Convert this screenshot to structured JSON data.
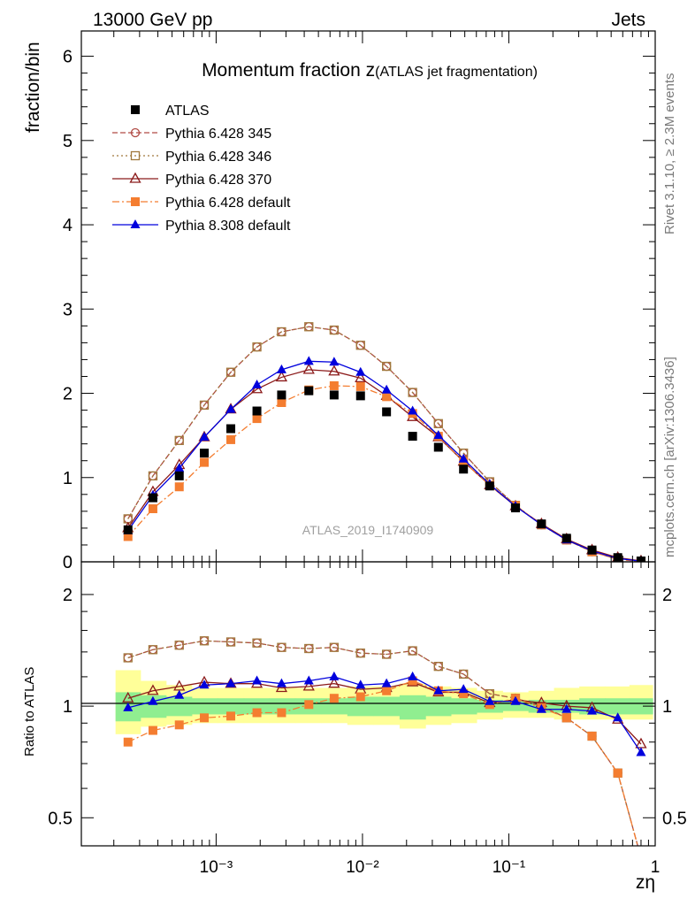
{
  "header": {
    "energy": "13000 GeV pp",
    "category": "Jets"
  },
  "side_labels": {
    "rivet": "Rivet 3.1.10, ≥ 2.3M events",
    "source": "mcplots.cern.ch [arXiv:1306.3436]"
  },
  "chart_data": [
    {
      "type": "scatter",
      "title_main": "Momentum fraction z",
      "title_sub": "(ATLAS jet fragmentation)",
      "ylabel": "fraction/bin",
      "xlabel": "zη",
      "analysis_label": "ATLAS_2019_I1740909",
      "x_scale": "log",
      "xlim": [
        0.00012,
        1.0
      ],
      "ylim": [
        0,
        6.3
      ],
      "yticks": [
        "0",
        "1",
        "2",
        "3",
        "4",
        "5",
        "6"
      ],
      "xticks": [
        "10⁻³",
        "10⁻²",
        "10⁻¹",
        "1"
      ],
      "x": [
        0.00025,
        0.00037,
        0.00056,
        0.00083,
        0.00126,
        0.0019,
        0.0028,
        0.0043,
        0.0064,
        0.0097,
        0.0146,
        0.022,
        0.033,
        0.049,
        0.074,
        0.111,
        0.167,
        0.248,
        0.37,
        0.555,
        0.8
      ],
      "series": [
        {
          "name": "ATLAS",
          "color": "#000000",
          "marker": "square-filled",
          "line": "none",
          "values": [
            0.38,
            0.76,
            1.02,
            1.29,
            1.58,
            1.79,
            1.98,
            2.03,
            1.98,
            1.97,
            1.78,
            1.49,
            1.36,
            1.1,
            0.9,
            0.64,
            0.45,
            0.28,
            0.14,
            0.05,
            0.01
          ]
        },
        {
          "name": "Pythia 6.428 345",
          "color": "#b04a44",
          "marker": "circle-open",
          "line": "dashed",
          "values": [
            0.51,
            1.02,
            1.44,
            1.86,
            2.25,
            2.55,
            2.73,
            2.79,
            2.75,
            2.57,
            2.32,
            2.01,
            1.64,
            1.29,
            0.95,
            0.67,
            0.44,
            0.26,
            0.12,
            0.03,
            0.004
          ]
        },
        {
          "name": "Pythia 6.428 346",
          "color": "#a0783c",
          "marker": "square-open",
          "line": "dotted",
          "values": [
            0.51,
            1.02,
            1.44,
            1.86,
            2.25,
            2.55,
            2.73,
            2.79,
            2.75,
            2.57,
            2.32,
            2.01,
            1.64,
            1.29,
            0.95,
            0.67,
            0.44,
            0.26,
            0.12,
            0.03,
            0.004
          ]
        },
        {
          "name": "Pythia 6.428 370",
          "color": "#8b1a1a",
          "marker": "triangle-open",
          "line": "solid",
          "values": [
            0.4,
            0.83,
            1.15,
            1.48,
            1.81,
            2.05,
            2.19,
            2.28,
            2.26,
            2.18,
            1.97,
            1.72,
            1.48,
            1.19,
            0.91,
            0.66,
            0.45,
            0.27,
            0.14,
            0.05,
            0.01
          ]
        },
        {
          "name": "Pythia 6.428 default",
          "color": "#f47d30",
          "marker": "square-filled",
          "line": "dashdot",
          "values": [
            0.3,
            0.63,
            0.89,
            1.18,
            1.45,
            1.7,
            1.89,
            2.04,
            2.09,
            2.08,
            1.96,
            1.76,
            1.49,
            1.19,
            0.91,
            0.67,
            0.44,
            0.26,
            0.12,
            0.03,
            0.004
          ]
        },
        {
          "name": "Pythia 8.308 default",
          "color": "#0000dd",
          "marker": "triangle-filled",
          "line": "solid",
          "values": [
            0.37,
            0.79,
            1.11,
            1.48,
            1.81,
            2.1,
            2.28,
            2.38,
            2.37,
            2.25,
            2.04,
            1.79,
            1.5,
            1.22,
            0.92,
            0.66,
            0.44,
            0.26,
            0.13,
            0.04,
            0.008
          ]
        }
      ]
    },
    {
      "type": "scatter",
      "ylabel": "Ratio to ATLAS",
      "y_scale": "log",
      "ylim": [
        0.42,
        2.45
      ],
      "yticks": [
        "0.5",
        "1",
        "2"
      ],
      "reference_line": 1.0,
      "uncertainty_bands": {
        "inner_color": "#90ee90",
        "outer_color": "#ffff99",
        "inner": [
          [
            0.91,
            1.09
          ],
          [
            0.93,
            1.07
          ],
          [
            0.94,
            1.06
          ],
          [
            0.95,
            1.05
          ],
          [
            0.95,
            1.05
          ],
          [
            0.95,
            1.05
          ],
          [
            0.95,
            1.05
          ],
          [
            0.95,
            1.05
          ],
          [
            0.95,
            1.05
          ],
          [
            0.94,
            1.06
          ],
          [
            0.94,
            1.06
          ],
          [
            0.92,
            1.07
          ],
          [
            0.94,
            1.06
          ],
          [
            0.95,
            1.05
          ],
          [
            0.96,
            1.04
          ],
          [
            0.97,
            1.03
          ],
          [
            0.96,
            1.04
          ],
          [
            0.96,
            1.04
          ],
          [
            0.95,
            1.05
          ],
          [
            0.95,
            1.05
          ],
          [
            0.95,
            1.05
          ]
        ],
        "outer": [
          [
            0.84,
            1.25
          ],
          [
            0.88,
            1.17
          ],
          [
            0.89,
            1.14
          ],
          [
            0.9,
            1.12
          ],
          [
            0.9,
            1.12
          ],
          [
            0.9,
            1.12
          ],
          [
            0.9,
            1.12
          ],
          [
            0.9,
            1.12
          ],
          [
            0.9,
            1.12
          ],
          [
            0.89,
            1.13
          ],
          [
            0.89,
            1.13
          ],
          [
            0.87,
            1.15
          ],
          [
            0.89,
            1.13
          ],
          [
            0.9,
            1.12
          ],
          [
            0.92,
            1.1
          ],
          [
            0.93,
            1.09
          ],
          [
            0.93,
            1.1
          ],
          [
            0.92,
            1.12
          ],
          [
            0.92,
            1.13
          ],
          [
            0.92,
            1.13
          ],
          [
            0.92,
            1.14
          ]
        ]
      },
      "series": [
        {
          "name": "Pythia 6.428 345",
          "values": [
            1.35,
            1.42,
            1.46,
            1.5,
            1.49,
            1.48,
            1.44,
            1.43,
            1.44,
            1.39,
            1.38,
            1.41,
            1.28,
            1.22,
            1.08,
            1.05,
            1.0,
            0.93,
            0.83,
            0.66,
            0.39
          ]
        },
        {
          "name": "Pythia 6.428 346",
          "values": [
            1.35,
            1.42,
            1.46,
            1.5,
            1.49,
            1.48,
            1.44,
            1.43,
            1.44,
            1.39,
            1.38,
            1.41,
            1.28,
            1.22,
            1.08,
            1.05,
            1.0,
            0.93,
            0.83,
            0.66,
            0.39
          ]
        },
        {
          "name": "Pythia 6.428 370",
          "values": [
            1.05,
            1.1,
            1.13,
            1.16,
            1.15,
            1.15,
            1.12,
            1.13,
            1.15,
            1.11,
            1.12,
            1.16,
            1.09,
            1.09,
            1.02,
            1.04,
            1.02,
            1.0,
            0.99,
            0.92,
            0.79
          ]
        },
        {
          "name": "Pythia 6.428 default",
          "values": [
            0.8,
            0.86,
            0.89,
            0.93,
            0.94,
            0.96,
            0.96,
            1.01,
            1.05,
            1.06,
            1.1,
            1.17,
            1.1,
            1.08,
            1.01,
            1.05,
            0.99,
            0.93,
            0.83,
            0.66,
            0.39
          ]
        },
        {
          "name": "Pythia 8.308 default",
          "values": [
            0.99,
            1.03,
            1.07,
            1.14,
            1.15,
            1.17,
            1.15,
            1.17,
            1.2,
            1.14,
            1.15,
            1.2,
            1.1,
            1.11,
            1.03,
            1.03,
            0.98,
            0.98,
            0.97,
            0.93,
            0.75
          ]
        }
      ]
    }
  ]
}
